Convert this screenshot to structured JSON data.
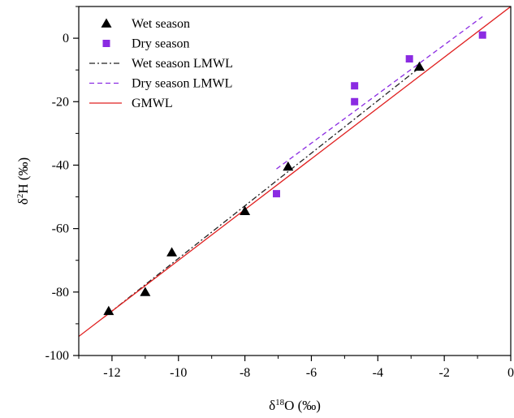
{
  "chart_data": {
    "type": "scatter",
    "xlabel_prefix": "δ",
    "xlabel_sup": "18",
    "xlabel_suffix": "O (‰)",
    "ylabel_prefix": "δ",
    "ylabel_sup": "2",
    "ylabel_suffix": "H (‰)",
    "xlim": [
      -13,
      0
    ],
    "ylim": [
      -100,
      10
    ],
    "xticks": [
      -12,
      -10,
      -8,
      -6,
      -4,
      -2,
      0
    ],
    "xtick_labels": [
      "-12",
      "-10",
      "-8",
      "-6",
      "-4",
      "-2",
      "0"
    ],
    "yticks": [
      -100,
      -80,
      -60,
      -40,
      -20,
      0
    ],
    "ytick_labels": [
      "-100",
      "-80",
      "-60",
      "-40",
      "-20",
      "0"
    ],
    "xminor": [
      -13,
      -11,
      -9,
      -7,
      -5,
      -3,
      -1
    ],
    "yminor": [
      -90,
      -70,
      -50,
      -30,
      -10,
      10
    ],
    "legend_position": "top-left",
    "series": [
      {
        "name": "Wet season",
        "kind": "points",
        "marker": "triangle",
        "color": "#000000",
        "x": [
          -12.1,
          -11.0,
          -10.2,
          -8.0,
          -6.7,
          -2.75
        ],
        "y": [
          -86,
          -80,
          -67.5,
          -54.5,
          -40.5,
          -9
        ]
      },
      {
        "name": "Dry season",
        "kind": "points",
        "marker": "square",
        "color": "#8B2BE2",
        "x": [
          -7.05,
          -4.7,
          -4.7,
          -3.05,
          -0.85
        ],
        "y": [
          -49,
          -15,
          -20,
          -6.5,
          1
        ]
      },
      {
        "name": "Wet season LMWL",
        "kind": "line",
        "dash": "dashdot",
        "color": "#222222",
        "x": [
          -12.1,
          -2.75
        ],
        "y": [
          -86.8,
          -9.3
        ]
      },
      {
        "name": "Dry season LMWL",
        "kind": "line",
        "dash": "dash",
        "color": "#8B2BE2",
        "x": [
          -7.05,
          -0.85
        ],
        "y": [
          -41.2,
          6.8
        ]
      },
      {
        "name": "GMWL",
        "kind": "line",
        "dash": "solid",
        "color": "#E02020",
        "x": [
          -13,
          0
        ],
        "y": [
          -94,
          10
        ]
      }
    ]
  }
}
